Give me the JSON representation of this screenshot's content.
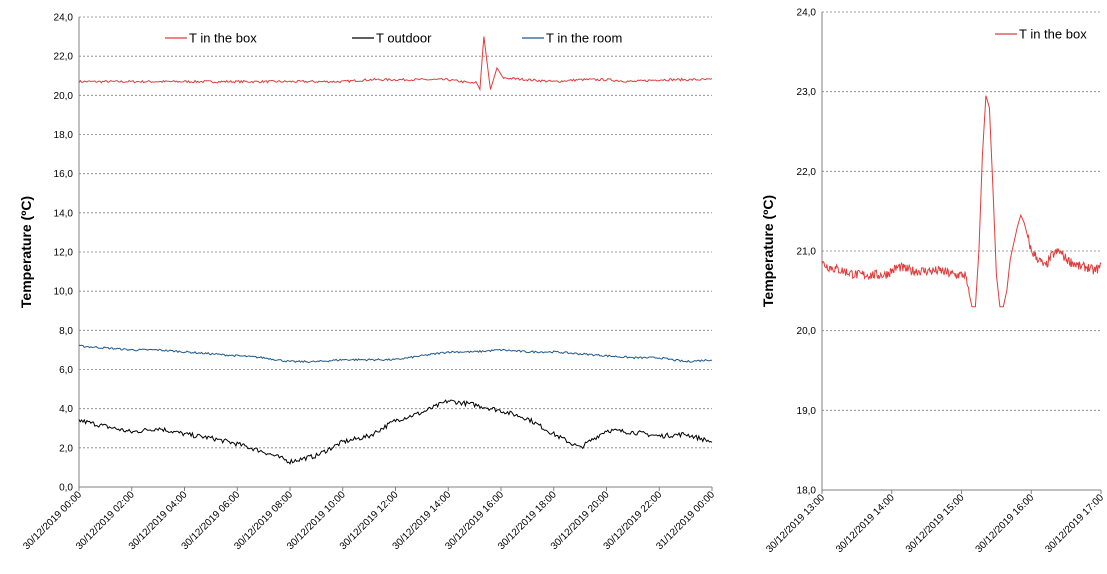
{
  "chart_data": [
    {
      "type": "line",
      "ylabel": "Temperature (ºC)",
      "xlabel": "",
      "ylim": [
        0,
        24
      ],
      "yticks": [
        "0,0",
        "2,0",
        "4,0",
        "6,0",
        "8,0",
        "10,0",
        "12,0",
        "14,0",
        "16,0",
        "18,0",
        "20,0",
        "22,0",
        "24,0"
      ],
      "xticks": [
        "30/12/2019 00:00",
        "30/12/2019 02:00",
        "30/12/2019 04:00",
        "30/12/2019 06:00",
        "30/12/2019 08:00",
        "30/12/2019 10:00",
        "30/12/2019 12:00",
        "30/12/2019 14:00",
        "30/12/2019 16:00",
        "30/12/2019 18:00",
        "30/12/2019 20:00",
        "30/12/2019 22:00",
        "31/12/2019 00:00"
      ],
      "grid": true,
      "legend": "top",
      "x_hours": [
        0,
        1,
        2,
        3,
        4,
        5,
        6,
        7,
        8,
        9,
        10,
        11,
        12,
        13,
        14,
        15,
        16,
        17,
        18,
        19,
        20,
        21,
        22,
        23,
        24
      ],
      "series": [
        {
          "name": "T in the box",
          "color": "#e03c3c",
          "values": [
            20.7,
            20.7,
            20.7,
            20.7,
            20.7,
            20.7,
            20.7,
            20.7,
            20.7,
            20.7,
            20.7,
            20.8,
            20.8,
            20.8,
            20.8,
            20.6,
            20.9,
            20.8,
            20.7,
            20.8,
            20.8,
            20.7,
            20.8,
            20.8,
            20.8
          ],
          "peaks": [
            [
              15.2,
              20.3
            ],
            [
              15.35,
              23.0
            ],
            [
              15.6,
              20.3
            ],
            [
              15.85,
              21.4
            ]
          ]
        },
        {
          "name": "T outdoor",
          "color": "#000000",
          "values": [
            3.4,
            3.1,
            2.8,
            3.0,
            2.7,
            2.5,
            2.2,
            1.8,
            1.3,
            1.6,
            2.3,
            2.6,
            3.4,
            3.8,
            4.4,
            4.2,
            3.9,
            3.5,
            2.7,
            2.0,
            2.9,
            2.8,
            2.6,
            2.7,
            2.3
          ]
        },
        {
          "name": "T in the room",
          "color": "#1f5a8c",
          "values": [
            7.2,
            7.1,
            7.0,
            7.0,
            6.9,
            6.8,
            6.7,
            6.6,
            6.4,
            6.4,
            6.5,
            6.5,
            6.5,
            6.7,
            6.9,
            6.9,
            7.0,
            6.9,
            6.9,
            6.8,
            6.7,
            6.6,
            6.6,
            6.4,
            6.5
          ]
        }
      ]
    },
    {
      "type": "line",
      "ylabel": "Temperature (ºC)",
      "xlabel": "",
      "ylim": [
        18,
        24
      ],
      "yticks": [
        "18,0",
        "19,0",
        "20,0",
        "21,0",
        "22,0",
        "23,0",
        "24,0"
      ],
      "xticks": [
        "30/12/2019 13:00",
        "30/12/2019 14:00",
        "30/12/2019 15:00",
        "30/12/2019 16:00",
        "30/12/2019 17:00"
      ],
      "grid": true,
      "legend": "top-right",
      "series": [
        {
          "name": "T in the box",
          "color": "#e03c3c",
          "x_hours": [
            13.0,
            13.1,
            13.3,
            13.5,
            13.7,
            13.9,
            14.1,
            14.3,
            14.5,
            14.7,
            14.9,
            15.05,
            15.15,
            15.2,
            15.25,
            15.3,
            15.35,
            15.4,
            15.45,
            15.5,
            15.55,
            15.6,
            15.65,
            15.7,
            15.8,
            15.85,
            15.9,
            16.0,
            16.1,
            16.2,
            16.3,
            16.4,
            16.5,
            16.6,
            16.7,
            16.8,
            16.9,
            17.0
          ],
          "values": [
            20.85,
            20.8,
            20.75,
            20.7,
            20.7,
            20.7,
            20.8,
            20.75,
            20.75,
            20.75,
            20.7,
            20.7,
            20.3,
            20.3,
            21.0,
            22.2,
            22.95,
            22.8,
            21.8,
            20.7,
            20.3,
            20.3,
            20.5,
            20.9,
            21.3,
            21.45,
            21.35,
            21.0,
            20.9,
            20.8,
            20.95,
            21.0,
            20.9,
            20.85,
            20.8,
            20.8,
            20.75,
            20.8
          ]
        }
      ]
    }
  ]
}
